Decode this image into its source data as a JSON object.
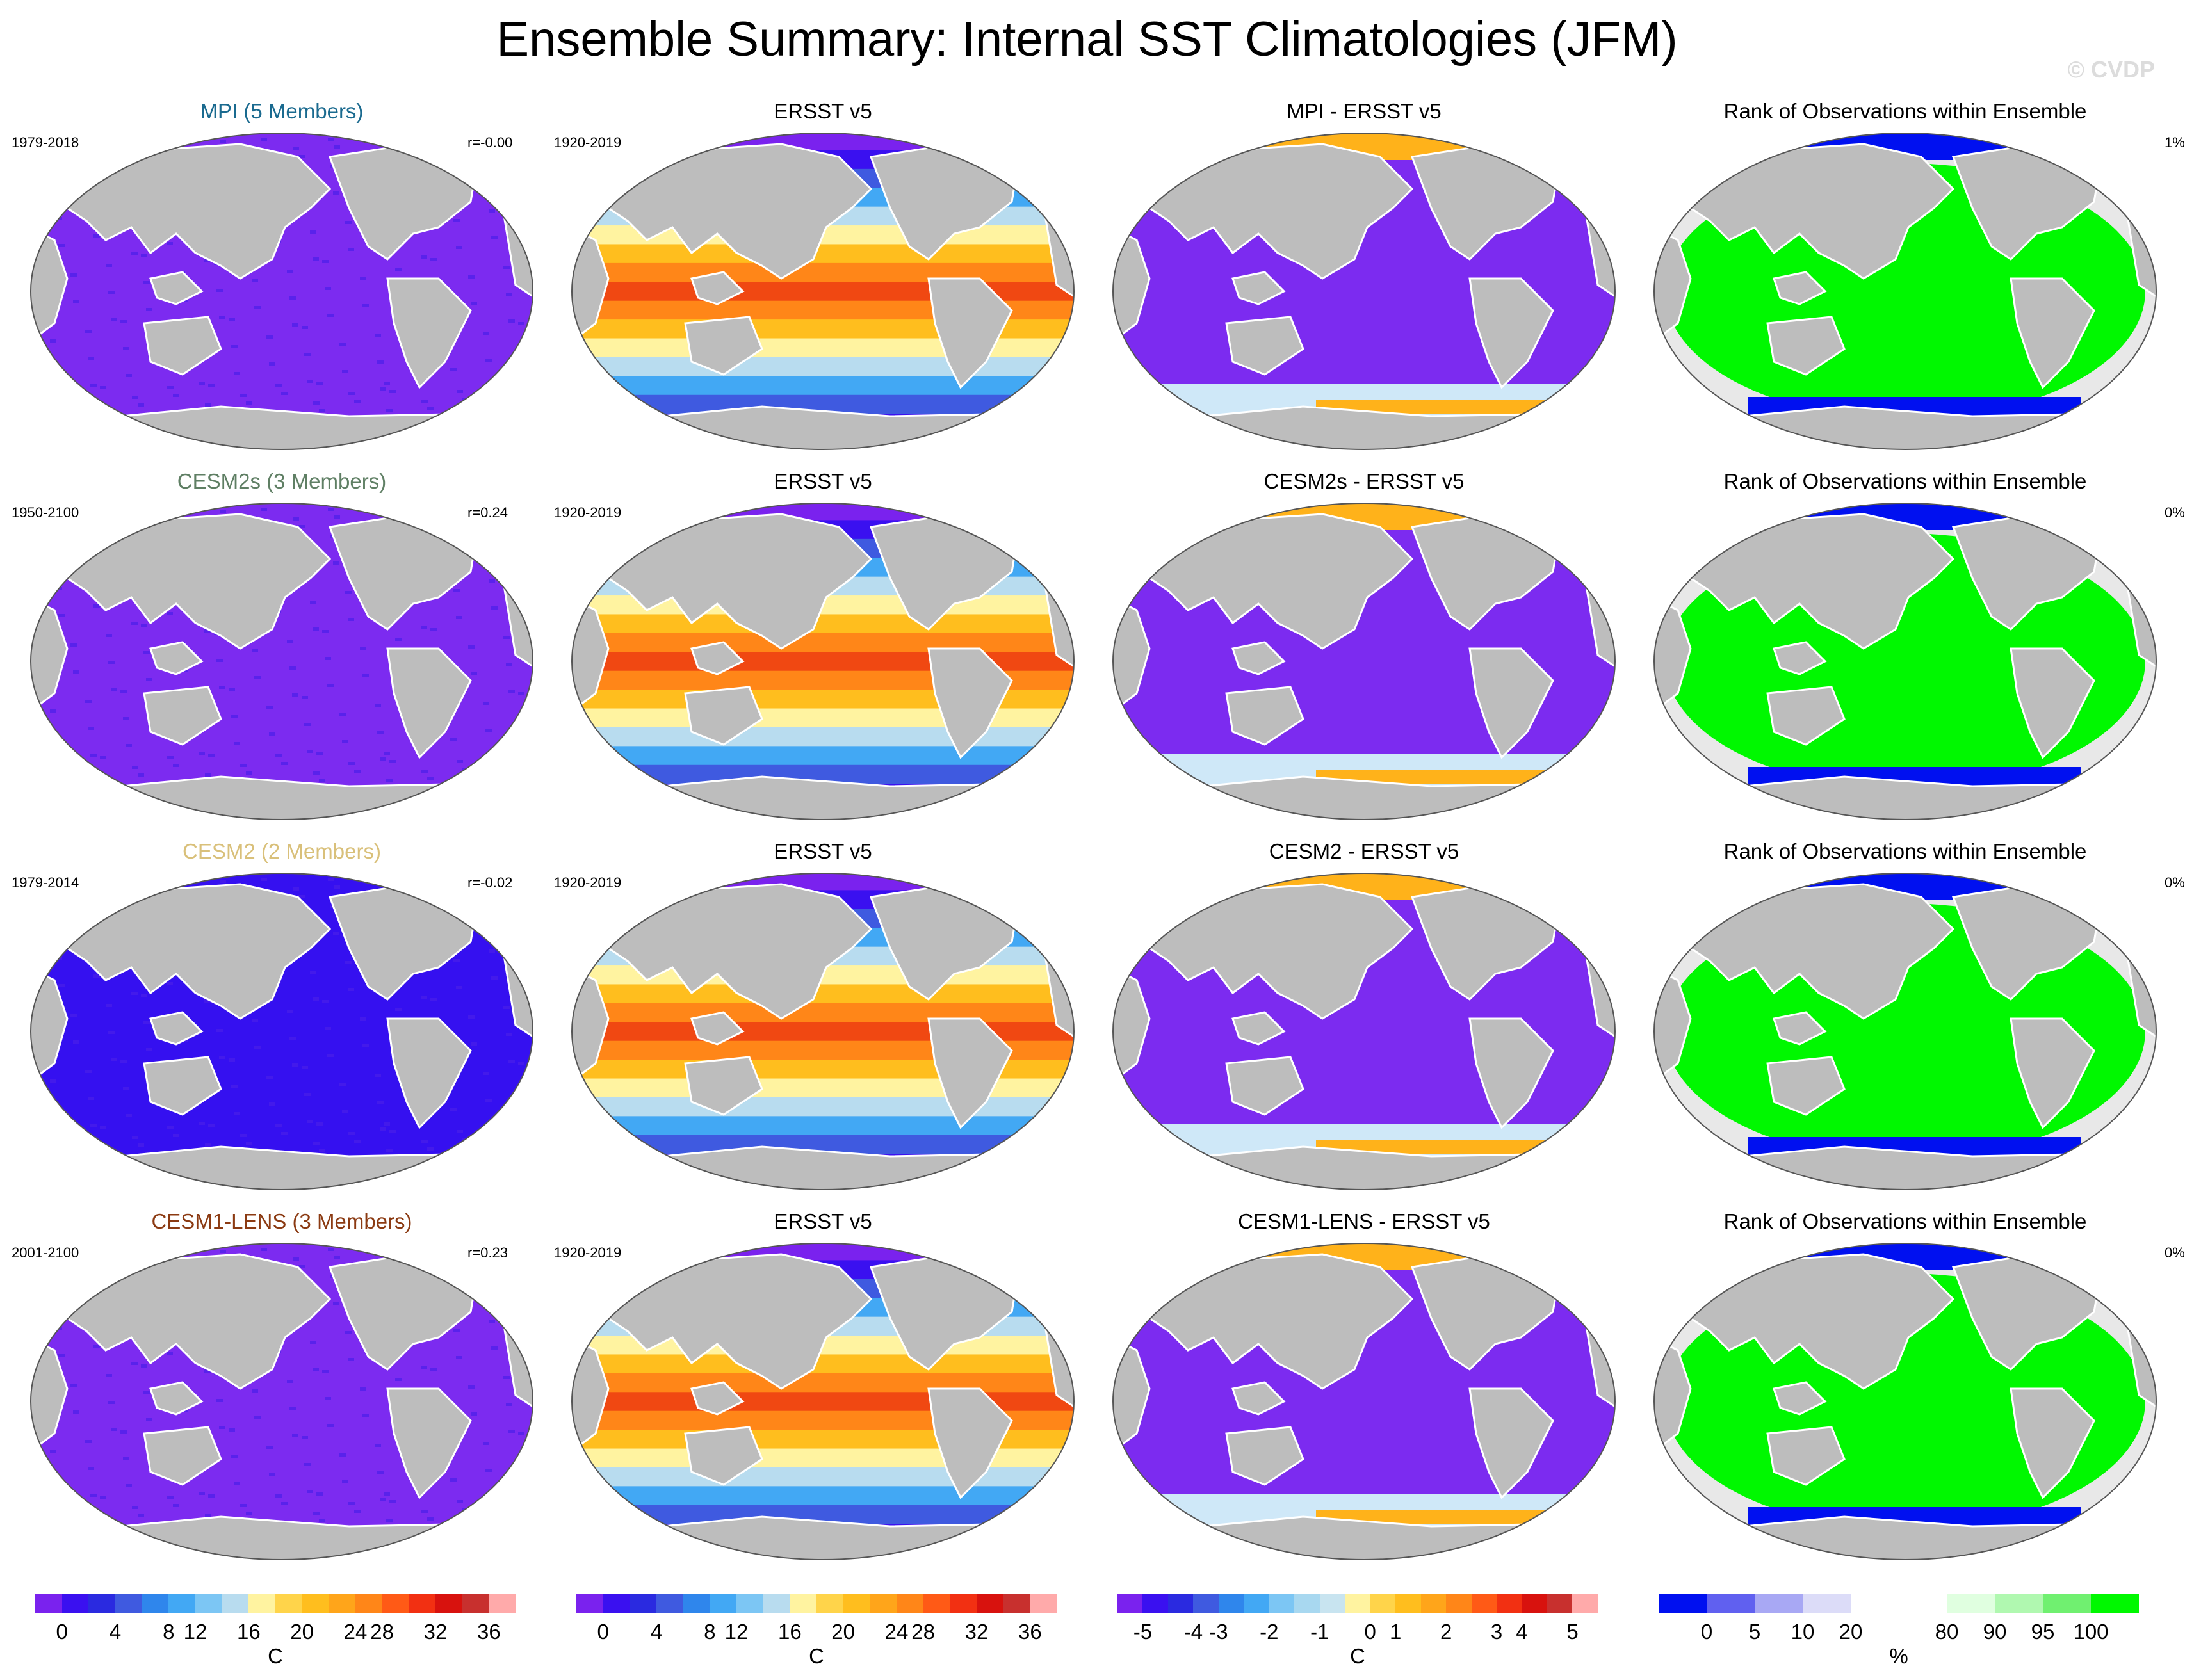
{
  "title": "Ensemble Summary: Internal SST Climatologies (JFM)",
  "watermark": "© CVDP",
  "rows": [
    {
      "model_title": "MPI (5 Members)",
      "model_color": "#1a6a8f",
      "model_years": "1979-2018",
      "corr": "r=-0.00",
      "obs_title": "ERSST v5",
      "obs_years": "1920-2019",
      "diff_title": "MPI - ERSST v5",
      "rank_title": "Rank of Observations within Ensemble",
      "rank_pct": "1%",
      "model_fill": "#7c2bf0"
    },
    {
      "model_title": "CESM2s (3 Members)",
      "model_color": "#5f7f64",
      "model_years": "1950-2100",
      "corr": "r=0.24",
      "obs_title": "ERSST v5",
      "obs_years": "1920-2019",
      "diff_title": "CESM2s - ERSST v5",
      "rank_title": "Rank of Observations within Ensemble",
      "rank_pct": "0%",
      "model_fill": "#7c2bf0"
    },
    {
      "model_title": "CESM2 (2 Members)",
      "model_color": "#d9c07a",
      "model_years": "1979-2014",
      "corr": "r=-0.02",
      "obs_title": "ERSST v5",
      "obs_years": "1920-2019",
      "diff_title": "CESM2 - ERSST v5",
      "rank_title": "Rank of Observations within Ensemble",
      "rank_pct": "0%",
      "model_fill": "#3510f0"
    },
    {
      "model_title": "CESM1-LENS (3 Members)",
      "model_color": "#8b3a12",
      "model_years": "2001-2100",
      "corr": "r=0.23",
      "obs_title": "ERSST v5",
      "obs_years": "1920-2019",
      "diff_title": "CESM1-LENS - ERSST v5",
      "rank_title": "Rank of Observations within Ensemble",
      "rank_pct": "0%",
      "model_fill": "#7c2bf0"
    }
  ],
  "colorbars": [
    {
      "unit": "C",
      "colors": [
        "#7a22ee",
        "#3a10f0",
        "#2a2ae0",
        "#3f5ae0",
        "#2f86ec",
        "#42a8f4",
        "#7cc6f4",
        "#b8dcef",
        "#fff3a0",
        "#ffd44a",
        "#ffbe1e",
        "#ffa51a",
        "#ff8618",
        "#ff5a16",
        "#f23012",
        "#d8120e",
        "#c8302e",
        "#ffaaaa"
      ],
      "ticks": [
        "0",
        "4",
        "8",
        "12",
        "16",
        "20",
        "24",
        "28",
        "32",
        "36"
      ]
    },
    {
      "unit": "C",
      "colors": [
        "#7a22ee",
        "#3a10f0",
        "#2a2ae0",
        "#3f5ae0",
        "#2f86ec",
        "#42a8f4",
        "#7cc6f4",
        "#b8dcef",
        "#fff3a0",
        "#ffd44a",
        "#ffbe1e",
        "#ffa51a",
        "#ff8618",
        "#ff5a16",
        "#f23012",
        "#d8120e",
        "#c8302e",
        "#ffaaaa"
      ],
      "ticks": [
        "0",
        "4",
        "8",
        "12",
        "16",
        "20",
        "24",
        "28",
        "32",
        "36"
      ]
    },
    {
      "unit": "C",
      "colors": [
        "#7a22ee",
        "#3a10f0",
        "#2a2ae0",
        "#3f5ae0",
        "#2f86ec",
        "#42a8f4",
        "#7cc6f4",
        "#a8d8f0",
        "#c8e4f0",
        "#fff3a0",
        "#ffd44a",
        "#ffbe1e",
        "#ffa51a",
        "#ff8618",
        "#ff5a16",
        "#f23012",
        "#d8120e",
        "#c8302e",
        "#ffaaaa"
      ],
      "ticks": [
        "-5",
        "-4",
        "-3",
        "-2",
        "-1",
        "0",
        "1",
        "2",
        "3",
        "4",
        "5"
      ]
    },
    {
      "unit": "%",
      "colors": [
        "#0010f0",
        "#6060f0",
        "#a8a8f4",
        "#dcdcf8",
        "#ffffff",
        "#ffffff",
        "#e0ffe0",
        "#b0f8b0",
        "#70f070",
        "#00f800"
      ],
      "ticks": [
        "0",
        "5",
        "10",
        "20",
        "80",
        "90",
        "95",
        "100"
      ]
    }
  ],
  "map_colors": {
    "land": "#bdbdbd",
    "globe_bg": "#e8e8e8",
    "obs_bands": [
      "#7a22ee",
      "#3a10f0",
      "#3f5ae0",
      "#42a8f4",
      "#b8dcef",
      "#fff3a0",
      "#ffbe1e",
      "#ff8618",
      "#f04812",
      "#ff8618",
      "#ffbe1e",
      "#fff3a0",
      "#b8dcef",
      "#42a8f4",
      "#3f5ae0",
      "#3a10f0",
      "#7a22ee"
    ],
    "diff_main": "#7c2bf0",
    "diff_north": "#ffb21a",
    "diff_south": "#cfe8f8",
    "rank_main": "#00f800",
    "rank_blue": "#0010f0"
  }
}
